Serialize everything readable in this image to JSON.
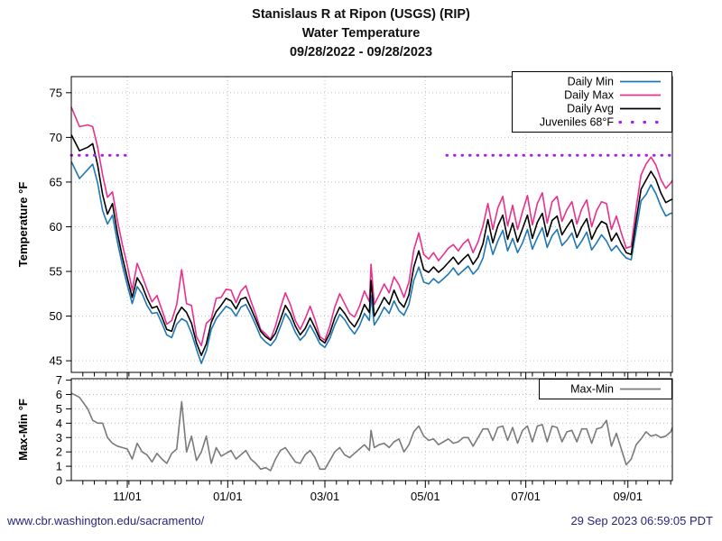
{
  "title": {
    "line1": "Stanislaus R at Ripon (USGS) (RIP)",
    "line2": "Water Temperature",
    "line3": "09/28/2022 - 09/28/2023"
  },
  "footer": {
    "url": "www.cbr.washington.edu/sacramento/",
    "timestamp": "29 Sep 2023 06:59:05 PDT"
  },
  "colors": {
    "daily_min": "#1f77b4",
    "daily_max": "#e8308e",
    "daily_avg": "#000000",
    "juveniles": "#a020f0",
    "maxmin": "#7a7a7a",
    "grid": "#bfbfbf",
    "frame": "#000000",
    "footer_text": "#26267d"
  },
  "chart_data": [
    {
      "type": "line",
      "title": "Water Temperature 09/28/2022 - 09/28/2023",
      "ylabel": "Temperature °F",
      "xlabel": "",
      "ylim": [
        43.7,
        76.8
      ],
      "yticks": [
        45,
        50,
        55,
        60,
        65,
        70,
        75
      ],
      "xlim_days": [
        0,
        365
      ],
      "x_minor_tick_interval_days": 7,
      "x_major_ticks": [
        {
          "day": 34,
          "label": "11/01"
        },
        {
          "day": 95,
          "label": "01/01"
        },
        {
          "day": 154,
          "label": "03/01"
        },
        {
          "day": 215,
          "label": "05/01"
        },
        {
          "day": 276,
          "label": "07/01"
        },
        {
          "day": 338,
          "label": "09/01"
        }
      ],
      "grid": true,
      "legend_position": "top-right",
      "x_days": [
        0,
        5,
        10,
        13,
        16,
        19,
        22,
        25,
        28,
        31,
        34,
        37,
        40,
        43,
        46,
        49,
        52,
        55,
        58,
        61,
        64,
        67,
        70,
        73,
        76,
        79,
        82,
        85,
        88,
        91,
        94,
        97,
        100,
        103,
        106,
        109,
        112,
        115,
        118,
        121,
        124,
        127,
        130,
        133,
        136,
        139,
        142,
        145,
        148,
        151,
        154,
        157,
        160,
        163,
        166,
        169,
        172,
        175,
        178,
        181,
        182,
        184,
        187,
        190,
        193,
        196,
        199,
        202,
        205,
        208,
        211,
        214,
        217,
        220,
        223,
        226,
        229,
        232,
        235,
        238,
        241,
        244,
        247,
        250,
        253,
        256,
        259,
        262,
        265,
        268,
        271,
        274,
        277,
        280,
        283,
        286,
        289,
        292,
        295,
        298,
        301,
        304,
        307,
        310,
        313,
        316,
        319,
        322,
        325,
        328,
        331,
        334,
        337,
        340,
        343,
        346,
        349,
        352,
        355,
        358,
        361,
        364,
        365
      ],
      "dates": [
        "09/28",
        "10/03",
        "10/08",
        "10/11",
        "10/14",
        "10/17",
        "10/20",
        "10/23",
        "10/26",
        "10/29",
        "11/01",
        "11/04",
        "11/07",
        "11/10",
        "11/13",
        "11/16",
        "11/19",
        "11/22",
        "11/25",
        "11/28",
        "12/01",
        "12/04",
        "12/07",
        "12/10",
        "12/13",
        "12/16",
        "12/19",
        "12/22",
        "12/25",
        "12/28",
        "12/31",
        "01/03",
        "01/06",
        "01/09",
        "01/12",
        "01/15",
        "01/18",
        "01/21",
        "01/24",
        "01/27",
        "01/30",
        "02/02",
        "02/05",
        "02/08",
        "02/11",
        "02/14",
        "02/17",
        "02/20",
        "02/23",
        "02/26",
        "03/01",
        "03/04",
        "03/07",
        "03/10",
        "03/13",
        "03/16",
        "03/19",
        "03/22",
        "03/25",
        "03/28",
        "03/29",
        "03/31",
        "04/03",
        "04/06",
        "04/09",
        "04/12",
        "04/15",
        "04/18",
        "04/21",
        "04/24",
        "04/27",
        "04/30",
        "05/03",
        "05/06",
        "05/09",
        "05/12",
        "05/15",
        "05/18",
        "05/21",
        "05/24",
        "05/27",
        "05/30",
        "06/02",
        "06/05",
        "06/08",
        "06/11",
        "06/14",
        "06/17",
        "06/20",
        "06/23",
        "06/26",
        "06/29",
        "07/02",
        "07/05",
        "07/08",
        "07/11",
        "07/14",
        "07/17",
        "07/20",
        "07/23",
        "07/26",
        "07/29",
        "08/01",
        "08/04",
        "08/07",
        "08/10",
        "08/13",
        "08/16",
        "08/19",
        "08/22",
        "08/25",
        "08/28",
        "08/31",
        "09/03",
        "09/06",
        "09/09",
        "09/12",
        "09/15",
        "09/18",
        "09/21",
        "09/24",
        "09/27",
        "09/28"
      ],
      "series": [
        {
          "name": "Daily Min",
          "color_key": "daily_min",
          "style": "solid",
          "values": [
            67.3,
            65.4,
            66.4,
            67.0,
            64.9,
            61.8,
            60.3,
            61.3,
            58.3,
            55.7,
            53.5,
            51.4,
            53.3,
            52.5,
            51.2,
            50.3,
            50.4,
            49.2,
            47.9,
            47.6,
            49.1,
            49.7,
            49.4,
            48.1,
            46.3,
            44.7,
            46.1,
            48.5,
            49.7,
            50.4,
            51.1,
            50.8,
            50.0,
            51.0,
            51.3,
            50.2,
            49.0,
            47.7,
            47.1,
            46.7,
            47.4,
            48.8,
            50.3,
            49.5,
            48.2,
            47.3,
            47.9,
            49.0,
            48.0,
            46.9,
            46.5,
            47.5,
            49.0,
            50.2,
            49.6,
            48.7,
            48.0,
            48.9,
            50.3,
            49.5,
            52.3,
            49.0,
            49.9,
            51.0,
            50.3,
            51.7,
            50.6,
            50.1,
            51.3,
            54.0,
            55.5,
            53.8,
            53.6,
            54.2,
            53.7,
            54.2,
            54.7,
            55.4,
            54.6,
            55.1,
            55.6,
            54.7,
            55.3,
            56.5,
            59.0,
            56.9,
            58.4,
            59.6,
            57.3,
            58.7,
            57.1,
            58.2,
            59.7,
            57.5,
            58.8,
            59.9,
            57.7,
            59.0,
            59.7,
            57.9,
            58.5,
            59.3,
            57.6,
            58.4,
            59.4,
            57.4,
            58.2,
            59.1,
            58.4,
            57.3,
            57.9,
            57.1,
            56.5,
            56.3,
            59.6,
            62.9,
            63.6,
            64.7,
            63.7,
            62.3,
            61.2,
            61.5,
            61.5
          ]
        },
        {
          "name": "Daily Max",
          "color_key": "daily_max",
          "style": "solid",
          "values": [
            73.4,
            71.2,
            71.4,
            71.2,
            68.9,
            65.8,
            63.3,
            63.9,
            60.7,
            58.0,
            55.7,
            52.9,
            55.9,
            54.5,
            53.0,
            51.6,
            52.3,
            50.7,
            49.1,
            49.5,
            51.3,
            55.2,
            51.4,
            51.2,
            47.7,
            46.7,
            49.2,
            49.7,
            52.0,
            52.1,
            53.0,
            52.9,
            51.5,
            52.8,
            53.4,
            51.7,
            50.2,
            48.5,
            48.0,
            47.4,
            48.9,
            50.9,
            52.6,
            51.3,
            49.5,
            48.5,
            49.7,
            51.1,
            49.6,
            47.7,
            47.3,
            48.9,
            51.0,
            52.5,
            51.4,
            50.3,
            49.9,
            51.1,
            52.8,
            51.6,
            55.8,
            51.3,
            52.4,
            53.6,
            52.6,
            54.4,
            53.5,
            52.1,
            53.8,
            57.4,
            59.3,
            56.9,
            56.4,
            57.1,
            56.2,
            56.9,
            57.6,
            58.0,
            57.3,
            58.1,
            58.6,
            57.1,
            58.3,
            60.1,
            62.6,
            59.7,
            62.1,
            63.4,
            60.1,
            62.4,
            59.7,
            61.7,
            63.5,
            60.2,
            62.6,
            63.8,
            60.4,
            62.8,
            63.4,
            60.6,
            61.9,
            62.8,
            60.3,
            62.0,
            63.0,
            60.0,
            61.8,
            62.8,
            62.6,
            59.7,
            61.2,
            59.3,
            57.6,
            57.8,
            62.1,
            65.8,
            67.0,
            67.8,
            66.9,
            65.3,
            64.3,
            64.9,
            65.2
          ]
        },
        {
          "name": "Daily Avg",
          "color_key": "daily_avg",
          "style": "solid",
          "values": [
            70.3,
            68.5,
            68.9,
            69.3,
            66.9,
            63.6,
            61.4,
            62.6,
            59.3,
            56.6,
            54.3,
            52.1,
            54.3,
            53.4,
            52.0,
            50.9,
            51.1,
            49.9,
            48.5,
            48.3,
            50.1,
            51.0,
            50.4,
            49.2,
            47.0,
            45.6,
            46.9,
            49.3,
            50.5,
            51.2,
            52.0,
            51.7,
            50.8,
            51.9,
            52.1,
            50.9,
            49.6,
            48.3,
            47.7,
            47.3,
            48.1,
            49.6,
            51.2,
            50.3,
            48.9,
            47.9,
            48.6,
            49.8,
            48.7,
            47.4,
            47.0,
            48.1,
            49.8,
            51.0,
            50.3,
            49.4,
            48.8,
            49.8,
            51.3,
            50.4,
            54.0,
            50.0,
            51.0,
            52.1,
            51.3,
            52.9,
            51.6,
            51.0,
            52.4,
            55.5,
            57.3,
            55.2,
            54.9,
            55.5,
            54.9,
            55.4,
            56.0,
            56.6,
            55.8,
            56.4,
            56.9,
            55.8,
            56.6,
            58.1,
            60.8,
            58.2,
            60.1,
            61.3,
            58.6,
            60.4,
            58.3,
            59.8,
            61.3,
            58.7,
            60.5,
            61.5,
            58.9,
            60.7,
            61.2,
            59.1,
            60.0,
            60.8,
            58.8,
            60.0,
            60.9,
            58.6,
            59.8,
            60.6,
            60.3,
            58.4,
            59.3,
            58.1,
            57.1,
            56.9,
            60.7,
            64.2,
            65.2,
            66.2,
            65.3,
            63.8,
            62.7,
            63.0,
            63.1
          ]
        },
        {
          "name": "Juveniles 68°F",
          "color_key": "juveniles",
          "style": "dotted",
          "value": 68,
          "segments_days": [
            [
              0,
              35
            ],
            [
              228,
              365
            ]
          ]
        }
      ]
    },
    {
      "type": "line",
      "title": "Daily temperature range (Max-Min)",
      "ylabel": "Max-Min °F",
      "xlabel": "",
      "ylim": [
        0,
        7.1
      ],
      "yticks": [
        0,
        1,
        2,
        3,
        4,
        5,
        6,
        7
      ],
      "grid": true,
      "legend_position": "top-right",
      "series": [
        {
          "name": "Max-Min",
          "color_key": "maxmin",
          "style": "solid",
          "values": [
            6.1,
            5.8,
            5.0,
            4.2,
            4.0,
            4.0,
            3.0,
            2.6,
            2.4,
            2.3,
            2.2,
            1.5,
            2.6,
            2.0,
            1.8,
            1.3,
            1.9,
            1.5,
            1.2,
            1.9,
            2.2,
            5.5,
            2.0,
            3.1,
            1.4,
            2.0,
            3.1,
            1.2,
            2.3,
            1.7,
            1.9,
            2.1,
            1.5,
            1.8,
            2.1,
            1.5,
            1.2,
            0.8,
            0.9,
            0.7,
            1.5,
            2.1,
            2.3,
            1.8,
            1.3,
            1.2,
            1.8,
            2.1,
            1.6,
            0.8,
            0.8,
            1.4,
            2.0,
            2.3,
            1.8,
            1.6,
            1.9,
            2.2,
            2.5,
            2.1,
            3.5,
            2.3,
            2.5,
            2.6,
            2.3,
            2.7,
            2.9,
            2.0,
            2.5,
            3.4,
            3.8,
            3.1,
            2.8,
            2.9,
            2.5,
            2.7,
            2.9,
            2.6,
            2.7,
            3.0,
            3.0,
            2.4,
            3.0,
            3.6,
            3.6,
            2.8,
            3.7,
            3.8,
            2.8,
            3.7,
            2.6,
            3.5,
            3.8,
            2.7,
            3.8,
            3.9,
            2.7,
            3.8,
            3.7,
            2.7,
            3.4,
            3.5,
            2.7,
            3.6,
            3.6,
            2.6,
            3.6,
            3.7,
            4.2,
            2.4,
            3.3,
            2.2,
            1.1,
            1.5,
            2.5,
            2.9,
            3.4,
            3.1,
            3.2,
            3.0,
            3.1,
            3.4,
            3.7
          ]
        }
      ]
    }
  ]
}
